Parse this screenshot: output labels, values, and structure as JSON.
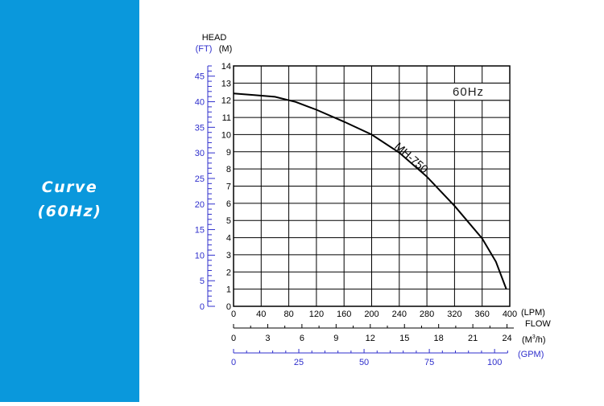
{
  "sidebar": {
    "title_line1": "Curve",
    "title_line2": "(60Hz)",
    "background_color": "#0a98dc"
  },
  "colors": {
    "ft_axis": "#2f2fcc",
    "gpm_axis": "#2f2fcc",
    "grid": "#000000",
    "curve": "#000000"
  },
  "chart_data": {
    "type": "line",
    "title": "60Hz",
    "y_title": "HEAD",
    "y_ft_unit": "(FT)",
    "y_m_unit": "(M)",
    "x_lpm_unit": "(LPM)",
    "x_flow_title": "FLOW",
    "x_m3h_unit_pre": "(M",
    "x_m3h_unit_sup": "3",
    "x_m3h_unit_post": "/h)",
    "x_gpm_unit": "(GPM)",
    "ylim_m": [
      0,
      14
    ],
    "xlim_lpm": [
      0,
      400
    ],
    "y_m_ticks": [
      "0",
      "1",
      "2",
      "3",
      "4",
      "5",
      "6",
      "7",
      "8",
      "9",
      "10",
      "11",
      "12",
      "13",
      "14"
    ],
    "y_ft_ticks": [
      "0",
      "5",
      "10",
      "15",
      "20",
      "25",
      "30",
      "35",
      "40",
      "45"
    ],
    "x_lpm_ticks": [
      "0",
      "40",
      "80",
      "120",
      "160",
      "200",
      "240",
      "280",
      "320",
      "360",
      "400"
    ],
    "x_m3h_ticks": [
      "0",
      "3",
      "6",
      "9",
      "12",
      "15",
      "18",
      "21",
      "24"
    ],
    "x_gpm_ticks": [
      "0",
      "25",
      "50",
      "75",
      "100"
    ],
    "series": [
      {
        "name": "MH-750",
        "x": [
          0,
          30,
          60,
          90,
          120,
          160,
          200,
          240,
          280,
          320,
          360,
          380,
          395
        ],
        "y": [
          12.4,
          12.3,
          12.2,
          11.9,
          11.45,
          10.75,
          10.0,
          8.95,
          7.55,
          5.85,
          3.95,
          2.6,
          1.0
        ]
      }
    ]
  }
}
